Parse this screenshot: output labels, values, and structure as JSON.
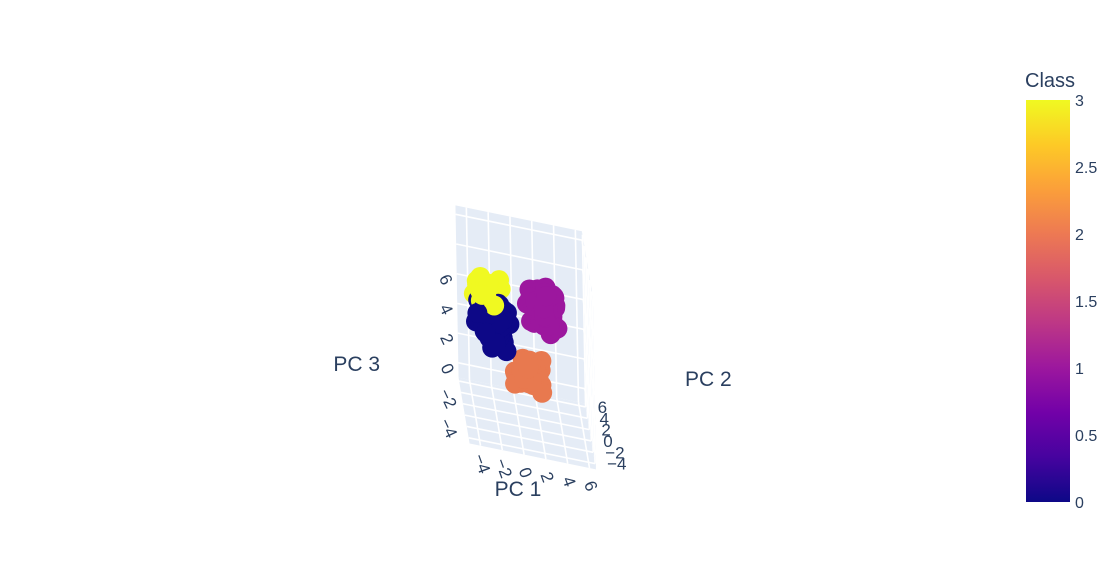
{
  "chart_data": {
    "type": "scatter3d",
    "axes": {
      "x": {
        "label": "PC 1",
        "ticks": [
          "−4",
          "−2",
          "0",
          "2",
          "4",
          "6"
        ],
        "range": [
          -5,
          6.6
        ]
      },
      "y": {
        "label": "PC 2",
        "ticks": [
          "−4",
          "−2",
          "0",
          "2",
          "4",
          "6"
        ],
        "range": [
          -5,
          6.6
        ]
      },
      "z": {
        "label": "PC 3",
        "ticks": [
          "−4",
          "−2",
          "0",
          "2",
          "4",
          "6"
        ],
        "range": [
          -5,
          6.6
        ]
      }
    },
    "colorbar": {
      "title": "Class",
      "ticks": [
        "0",
        "0.5",
        "1",
        "1.5",
        "2",
        "2.5",
        "3"
      ],
      "range": [
        0,
        3
      ],
      "colorscale": [
        "#0d0887",
        "#46039f",
        "#7201a8",
        "#9c179e",
        "#bd3786",
        "#d8576b",
        "#ed7953",
        "#fb9f3a",
        "#fdca26",
        "#f0f921"
      ]
    },
    "scene_background": "#e5ecf6",
    "grid": true,
    "series": [
      {
        "class": 3,
        "color": "#f0f921",
        "center": [
          -3.0,
          0.0,
          3.8
        ],
        "spread": [
          0.8,
          0.8,
          0.5
        ],
        "count": 25
      },
      {
        "class": 1,
        "color": "#9c179e",
        "center": [
          2.6,
          2.6,
          2.4
        ],
        "spread": [
          0.9,
          0.9,
          0.9
        ],
        "count": 75
      },
      {
        "class": 2,
        "color": "#e8794f",
        "center": [
          0.8,
          -1.6,
          -0.8
        ],
        "spread": [
          0.8,
          0.8,
          0.7
        ],
        "count": 55
      },
      {
        "class": 0,
        "color": "#0d0887",
        "center": [
          -2.2,
          -0.6,
          2.0
        ],
        "spread": [
          0.9,
          0.7,
          1.0
        ],
        "count": 90
      }
    ]
  }
}
